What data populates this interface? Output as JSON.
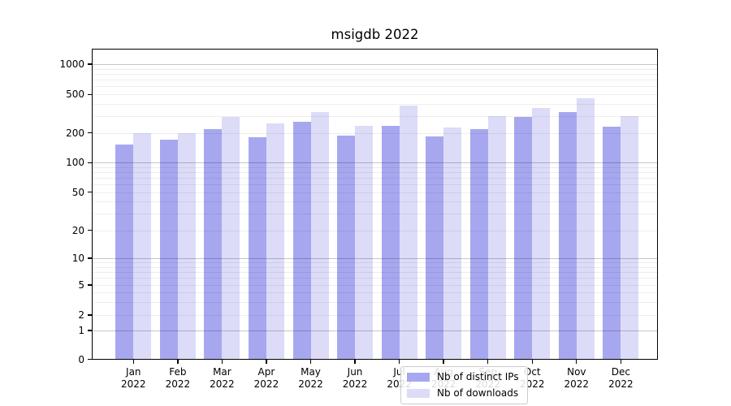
{
  "chart_data": {
    "type": "bar",
    "title": "msigdb 2022",
    "categories": [
      "Jan 2022",
      "Feb 2022",
      "Mar 2022",
      "Apr 2022",
      "May 2022",
      "Jun 2022",
      "Jul 2022",
      "Aug 2022",
      "Sep 2022",
      "Oct 2022",
      "Nov 2022",
      "Dec 2022"
    ],
    "series": [
      {
        "name": "Nb of distinct IPs",
        "color": "#a7a7f0",
        "values": [
          154,
          170,
          219,
          182,
          262,
          187,
          238,
          184,
          220,
          292,
          331,
          233
        ]
      },
      {
        "name": "Nb of downloads",
        "color": "#dcdcf8",
        "values": [
          199,
          200,
          291,
          252,
          331,
          235,
          381,
          228,
          297,
          365,
          455,
          296
        ]
      }
    ],
    "yscale": "symlog",
    "y_ticks": [
      0,
      1,
      2,
      5,
      10,
      20,
      50,
      100,
      200,
      500,
      1000
    ],
    "ylim": [
      0,
      1400
    ],
    "grid": true,
    "legend_position": "lower center"
  }
}
